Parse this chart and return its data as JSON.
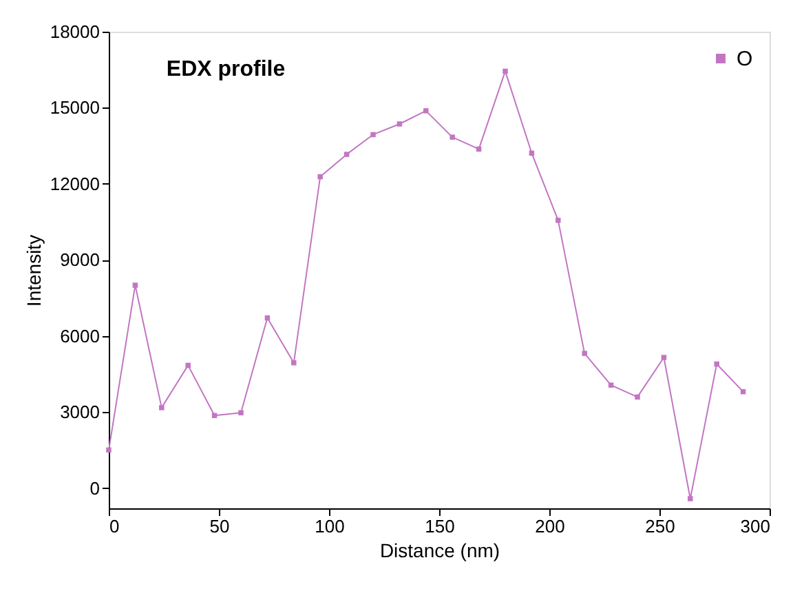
{
  "chart_data": {
    "type": "line",
    "title": "EDX profile",
    "xlabel": "Distance (nm)",
    "ylabel": "Intensity",
    "x": [
      0,
      12,
      24,
      36,
      48,
      60,
      72,
      84,
      96,
      108,
      120,
      132,
      144,
      156,
      168,
      180,
      192,
      204,
      216,
      228,
      240,
      252,
      264,
      276,
      288
    ],
    "series": [
      {
        "name": "O",
        "color": "#c276c2",
        "values": [
          1500,
          8000,
          3170,
          4840,
          2860,
          2970,
          6710,
          4940,
          12280,
          13160,
          13940,
          14360,
          14880,
          13840,
          13370,
          16440,
          13210,
          10560,
          5310,
          4060,
          3590,
          5150,
          -420,
          4890,
          3800
        ]
      }
    ],
    "xlim": [
      0,
      300
    ],
    "xticks": [
      0,
      50,
      100,
      150,
      200,
      250,
      300
    ],
    "ylim": [
      -800,
      18000
    ],
    "yticks": [
      0,
      3000,
      6000,
      9000,
      12000,
      15000,
      18000
    ],
    "grid": false,
    "legend": "top right",
    "marker": "square",
    "line_style": "solid"
  }
}
